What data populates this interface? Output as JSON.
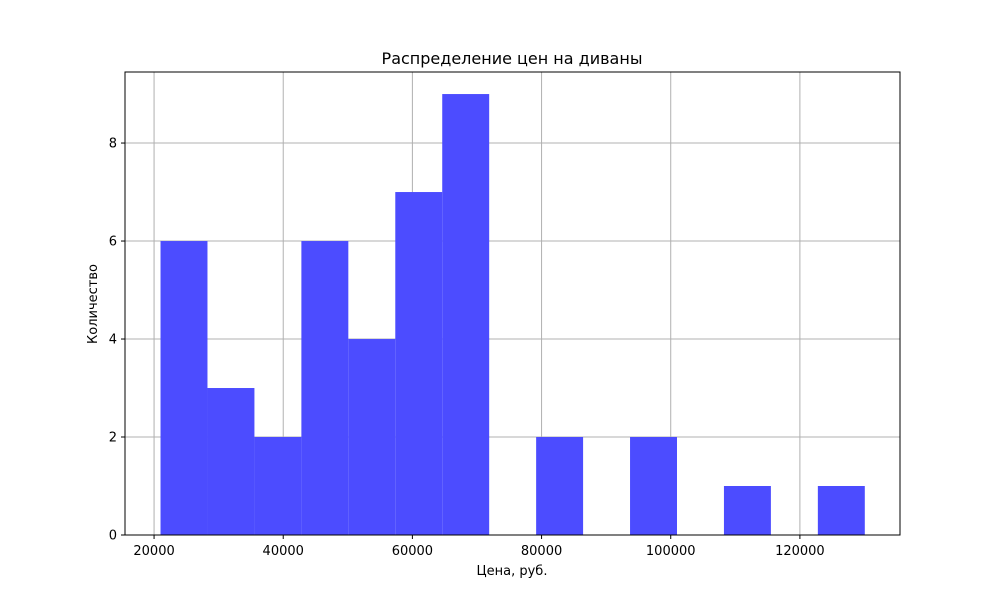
{
  "chart_data": {
    "type": "bar",
    "subtype": "histogram",
    "title": "Распределение цен на диваны",
    "xlabel": "Цена, руб.",
    "ylabel": "Количество",
    "color": "#4c4cff",
    "grid": true,
    "xlim": [
      15500,
      135500
    ],
    "ylim": [
      0,
      9.45
    ],
    "xticks": [
      20000,
      40000,
      60000,
      80000,
      100000,
      120000
    ],
    "yticks": [
      0,
      2,
      4,
      6,
      8
    ],
    "bins": [
      {
        "x0": 21000,
        "x1": 28270,
        "count": 6
      },
      {
        "x0": 28270,
        "x1": 35540,
        "count": 3
      },
      {
        "x0": 35540,
        "x1": 42810,
        "count": 2
      },
      {
        "x0": 42810,
        "x1": 50080,
        "count": 6
      },
      {
        "x0": 50080,
        "x1": 57350,
        "count": 4
      },
      {
        "x0": 57350,
        "x1": 64620,
        "count": 7
      },
      {
        "x0": 64620,
        "x1": 71890,
        "count": 9
      },
      {
        "x0": 71890,
        "x1": 79160,
        "count": 0
      },
      {
        "x0": 79160,
        "x1": 86430,
        "count": 2
      },
      {
        "x0": 86430,
        "x1": 93700,
        "count": 0
      },
      {
        "x0": 93700,
        "x1": 100970,
        "count": 2
      },
      {
        "x0": 100970,
        "x1": 108240,
        "count": 0
      },
      {
        "x0": 108240,
        "x1": 115510,
        "count": 1
      },
      {
        "x0": 115510,
        "x1": 122780,
        "count": 0
      },
      {
        "x0": 122780,
        "x1": 130050,
        "count": 1
      }
    ]
  }
}
